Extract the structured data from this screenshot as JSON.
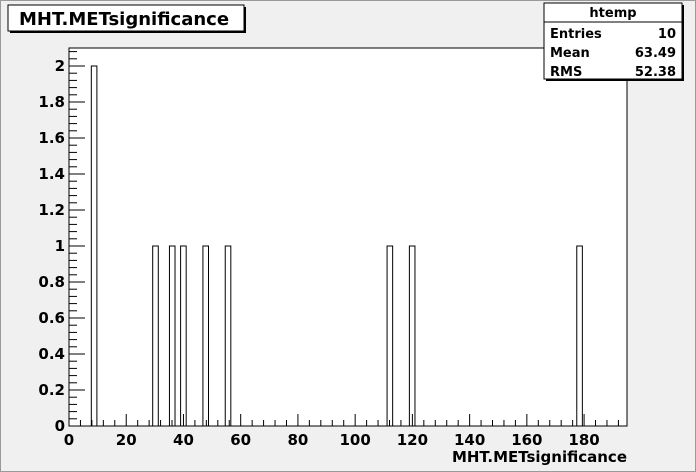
{
  "chart_data": {
    "type": "bar",
    "title": "MHT.METsignificance",
    "xlabel": "MHT.METsignificance",
    "ylabel": "",
    "xlim": [
      0,
      195
    ],
    "ylim": [
      0,
      2.1
    ],
    "x_ticks": [
      0,
      20,
      40,
      60,
      80,
      100,
      120,
      140,
      160,
      180
    ],
    "y_ticks": [
      0,
      0.2,
      0.4,
      0.6,
      0.8,
      1,
      1.2,
      1.4,
      1.6,
      1.8,
      2
    ],
    "bin_width": 1.95,
    "bins": [
      {
        "x": 7.8,
        "count": 2
      },
      {
        "x": 29.25,
        "count": 1
      },
      {
        "x": 35.1,
        "count": 1
      },
      {
        "x": 39.0,
        "count": 1
      },
      {
        "x": 46.8,
        "count": 1
      },
      {
        "x": 54.6,
        "count": 1
      },
      {
        "x": 111.15,
        "count": 1
      },
      {
        "x": 118.95,
        "count": 1
      },
      {
        "x": 177.45,
        "count": 1
      }
    ],
    "grid": false,
    "legend": "none"
  },
  "stats_box": {
    "title": "htemp",
    "rows": [
      {
        "label": "Entries",
        "value": "10"
      },
      {
        "label": "Mean",
        "value": "63.49"
      },
      {
        "label": "RMS",
        "value": "52.38"
      }
    ]
  },
  "colors": {
    "background": "#f0f0f0",
    "frame": "#ffffff",
    "line": "#000000"
  }
}
